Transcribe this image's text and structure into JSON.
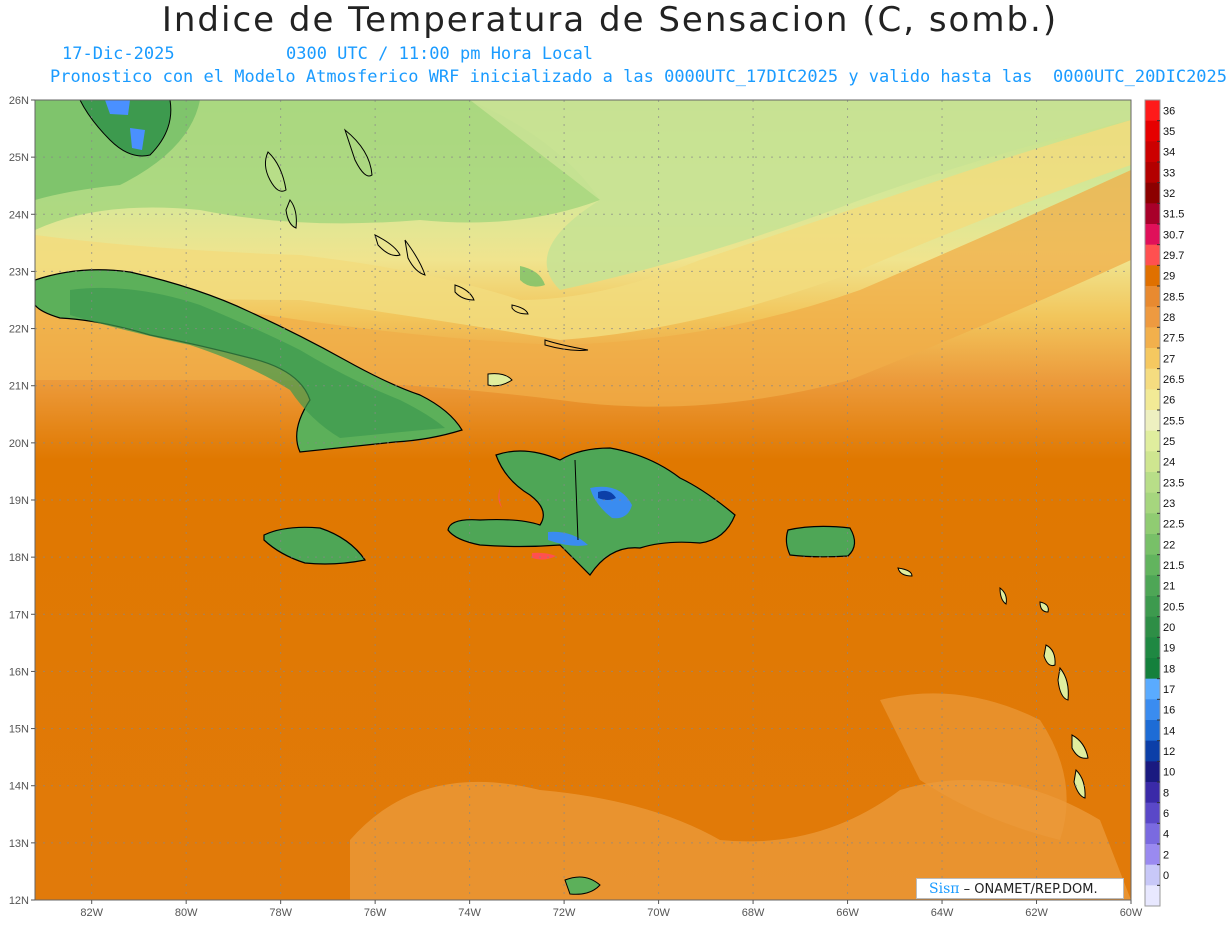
{
  "header": {
    "title": "Indice de Temperatura de Sensacion (C, somb.)",
    "date": "17-Dic-2025",
    "time": "0300 UTC / 11:00 pm Hora Local",
    "description": "Pronostico con el Modelo Atmosferico WRF inicializado a las 0000UTC_17DIC2025 y valido hasta las  0000UTC_20DIC2025"
  },
  "axes": {
    "lat_labels": [
      "26N",
      "25N",
      "24N",
      "23N",
      "22N",
      "21N",
      "20N",
      "19N",
      "18N",
      "17N",
      "16N",
      "15N",
      "14N",
      "13N",
      "12N"
    ],
    "lon_labels": [
      "82W",
      "80W",
      "78W",
      "76W",
      "74W",
      "72W",
      "70W",
      "68W",
      "66W",
      "64W",
      "62W",
      "60W"
    ],
    "lat_range": [
      12,
      26
    ],
    "lon_range": [
      -83.2,
      -60
    ]
  },
  "colorbar": {
    "labels": [
      "36",
      "35",
      "34",
      "33",
      "32",
      "31.5",
      "30.7",
      "29.7",
      "29",
      "28.5",
      "28",
      "27.5",
      "27",
      "26.5",
      "26",
      "25.5",
      "25",
      "24",
      "23.5",
      "23",
      "22.5",
      "22",
      "21.5",
      "21",
      "20.5",
      "20",
      "19",
      "18",
      "17",
      "16",
      "14",
      "12",
      "10",
      "8",
      "6",
      "4",
      "2",
      "0"
    ],
    "colors": [
      "#ff1a1a",
      "#e60000",
      "#cc0000",
      "#b30000",
      "#8c0000",
      "#a8002a",
      "#e0105a",
      "#ff5050",
      "#e07000",
      "#e88a30",
      "#ee9a40",
      "#f2b04c",
      "#f5c860",
      "#f5dc80",
      "#f2ea96",
      "#eef0c0",
      "#e0ee9e",
      "#cfe690",
      "#b8de88",
      "#a6d67e",
      "#90cc72",
      "#78c068",
      "#62b45e",
      "#4ea656",
      "#3d9a4e",
      "#2e8e46",
      "#1f8842",
      "#14803c",
      "#5aabff",
      "#3a8cf0",
      "#1d6cd6",
      "#0c3fa8",
      "#1a1a80",
      "#3a2aa8",
      "#5a48c8",
      "#7a6ae0",
      "#9a8af0",
      "#c8c8f8",
      "#e8e8ff"
    ]
  },
  "credit": {
    "brand": "Sisπ",
    "text": " – ONAMET/REP.DOM."
  }
}
